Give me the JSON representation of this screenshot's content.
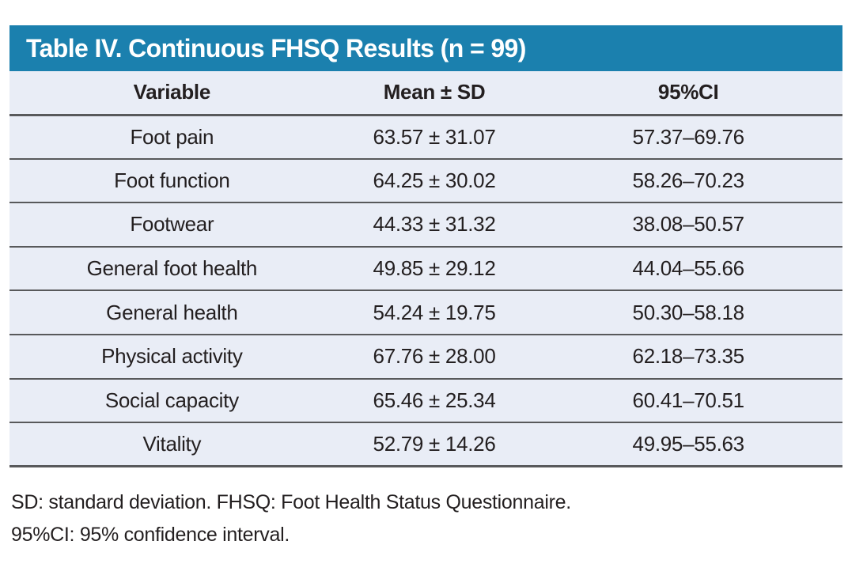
{
  "table": {
    "title": "Table IV. Continuous FHSQ Results (n = 99)",
    "columns": [
      "Variable",
      "Mean ± SD",
      "95%CI"
    ],
    "rows": [
      [
        "Foot pain",
        "63.57 ± 31.07",
        "57.37–69.76"
      ],
      [
        "Foot function",
        "64.25 ± 30.02",
        "58.26–70.23"
      ],
      [
        "Footwear",
        "44.33 ± 31.32",
        "38.08–50.57"
      ],
      [
        "General foot health",
        "49.85 ± 29.12",
        "44.04–55.66"
      ],
      [
        "General health",
        "54.24 ± 19.75",
        "50.30–58.18"
      ],
      [
        "Physical activity",
        "67.76 ± 28.00",
        "62.18–73.35"
      ],
      [
        "Social capacity",
        "65.46 ± 25.34",
        "60.41–70.51"
      ],
      [
        "Vitality",
        "52.79 ± 14.26",
        "49.95–55.63"
      ]
    ],
    "footnotes": [
      "SD: standard deviation. FHSQ: Foot Health Status Questionnaire.",
      "95%CI: 95% confidence interval."
    ]
  },
  "colors": {
    "header_bg": "#1b80ae",
    "row_bg": "#e9edf6",
    "divider": "#58595b",
    "text": "#231f20",
    "title_text": "#ffffff",
    "page_bg": "#ffffff"
  }
}
